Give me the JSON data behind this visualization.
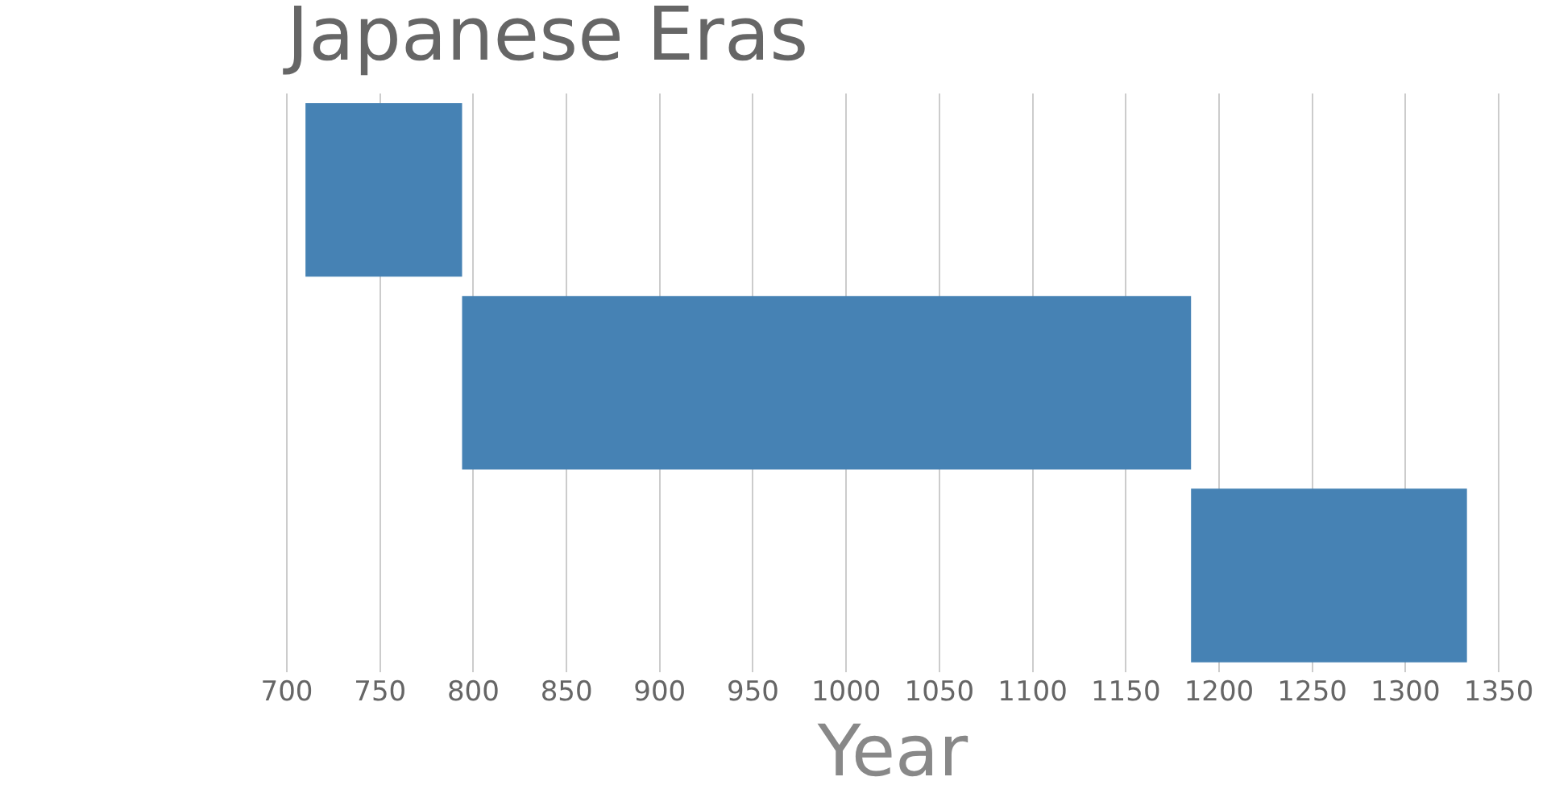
{
  "chart_data": {
    "type": "bar",
    "title": "Japanese Eras",
    "xlabel": "Year",
    "orientation": "horizontal",
    "categories": [
      null,
      null,
      null
    ],
    "base": [
      710,
      794,
      1185
    ],
    "values": [
      84,
      391,
      148
    ],
    "color": "#4682b4",
    "xlim": [
      700,
      1350
    ],
    "xticks": [
      700,
      750,
      800,
      850,
      900,
      950,
      1000,
      1050,
      1100,
      1150,
      1200,
      1250,
      1300,
      1350
    ],
    "grid": "x"
  }
}
